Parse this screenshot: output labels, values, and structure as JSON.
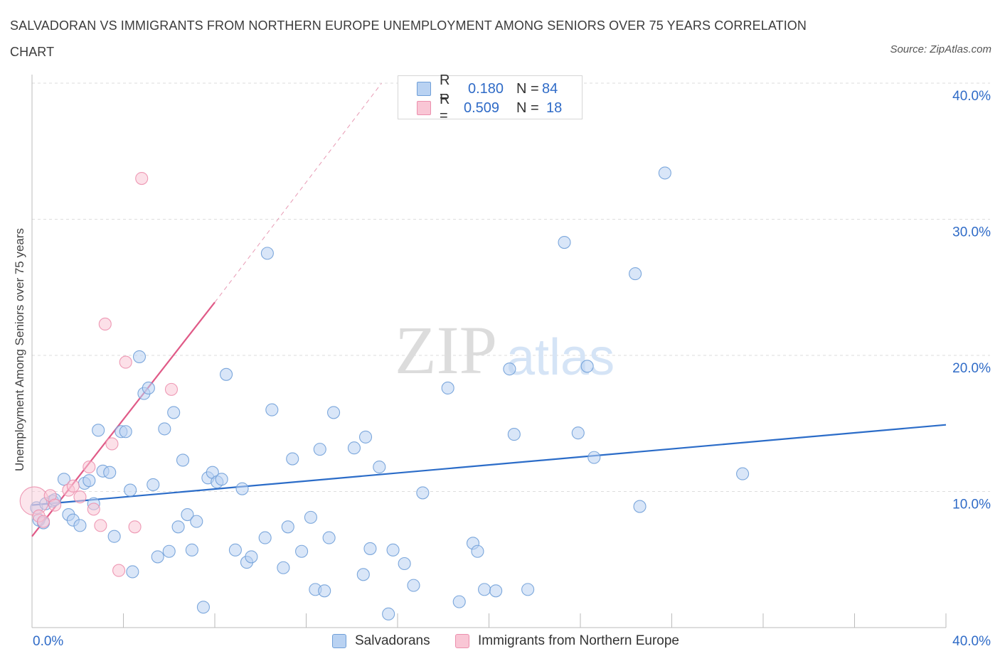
{
  "title": "SALVADORAN VS IMMIGRANTS FROM NORTHERN EUROPE UNEMPLOYMENT AMONG SENIORS OVER 75 YEARS CORRELATION CHART",
  "source": "Source: ZipAtlas.com",
  "watermark": {
    "zip": "ZIP",
    "atlas": "atlas"
  },
  "legend": {
    "r_label": "R =",
    "n_label": "N =",
    "rows": [
      {
        "r": "0.180",
        "n": "84",
        "color": "#a9c8f0"
      },
      {
        "r": "0.509",
        "n": "18",
        "color": "#f7b8cb"
      }
    ]
  },
  "bottom_legend": [
    "Salvadorans",
    "Immigrants from Northern Europe"
  ],
  "chart_data": {
    "type": "scatter",
    "ylabel": "Unemployment Among Seniors over 75 years",
    "xlim": [
      0,
      40
    ],
    "ylim": [
      0,
      40
    ],
    "x_tick_labels": [
      "0.0%",
      "40.0%"
    ],
    "y_tick_labels": [
      "10.0%",
      "20.0%",
      "30.0%",
      "40.0%"
    ],
    "y_ticks": [
      10,
      20,
      30,
      40
    ],
    "grid": true,
    "series": [
      {
        "name": "Salvadorans",
        "color": "#6f9fd8",
        "fill": "#b9d2f2",
        "trend": {
          "x0": 0,
          "y0": 9.0,
          "x1": 40,
          "y1": 14.9,
          "color": "#2b6cc8"
        },
        "points": [
          [
            0.2,
            8.8
          ],
          [
            0.3,
            7.9
          ],
          [
            0.5,
            7.7
          ],
          [
            0.6,
            9.1
          ],
          [
            0.9,
            9.3
          ],
          [
            1.0,
            9.4
          ],
          [
            1.4,
            10.9
          ],
          [
            1.6,
            8.3
          ],
          [
            1.8,
            7.9
          ],
          [
            2.1,
            7.5
          ],
          [
            2.3,
            10.6
          ],
          [
            2.5,
            10.8
          ],
          [
            2.7,
            9.1
          ],
          [
            2.9,
            14.5
          ],
          [
            3.1,
            11.5
          ],
          [
            3.4,
            11.4
          ],
          [
            3.6,
            6.7
          ],
          [
            3.9,
            14.4
          ],
          [
            4.1,
            14.4
          ],
          [
            4.3,
            10.1
          ],
          [
            4.4,
            4.1
          ],
          [
            4.7,
            19.9
          ],
          [
            4.9,
            17.2
          ],
          [
            5.1,
            17.6
          ],
          [
            5.3,
            10.5
          ],
          [
            5.5,
            5.2
          ],
          [
            5.8,
            14.6
          ],
          [
            6.0,
            5.6
          ],
          [
            6.2,
            15.8
          ],
          [
            6.4,
            7.4
          ],
          [
            6.6,
            12.3
          ],
          [
            6.8,
            8.3
          ],
          [
            7.0,
            5.7
          ],
          [
            7.2,
            7.8
          ],
          [
            7.5,
            1.5
          ],
          [
            7.7,
            11.0
          ],
          [
            7.9,
            11.4
          ],
          [
            8.1,
            10.7
          ],
          [
            8.3,
            10.9
          ],
          [
            8.5,
            18.6
          ],
          [
            8.9,
            5.7
          ],
          [
            9.2,
            10.2
          ],
          [
            9.4,
            4.8
          ],
          [
            9.6,
            5.2
          ],
          [
            10.2,
            6.6
          ],
          [
            10.3,
            27.5
          ],
          [
            10.5,
            16.0
          ],
          [
            11.0,
            4.4
          ],
          [
            11.2,
            7.4
          ],
          [
            11.4,
            12.4
          ],
          [
            11.8,
            5.6
          ],
          [
            12.2,
            8.1
          ],
          [
            12.4,
            2.8
          ],
          [
            12.6,
            13.1
          ],
          [
            12.8,
            2.7
          ],
          [
            13.0,
            6.6
          ],
          [
            13.2,
            15.8
          ],
          [
            14.1,
            13.2
          ],
          [
            14.5,
            3.9
          ],
          [
            14.6,
            14.0
          ],
          [
            14.8,
            5.8
          ],
          [
            15.2,
            11.8
          ],
          [
            15.6,
            1.0
          ],
          [
            15.8,
            5.7
          ],
          [
            16.3,
            4.7
          ],
          [
            16.7,
            3.1
          ],
          [
            17.1,
            9.9
          ],
          [
            18.2,
            17.6
          ],
          [
            18.7,
            1.9
          ],
          [
            19.3,
            6.2
          ],
          [
            19.5,
            5.6
          ],
          [
            19.8,
            2.8
          ],
          [
            20.3,
            2.7
          ],
          [
            20.9,
            19.0
          ],
          [
            21.1,
            14.2
          ],
          [
            21.7,
            2.8
          ],
          [
            23.3,
            28.3
          ],
          [
            23.9,
            14.3
          ],
          [
            24.3,
            19.2
          ],
          [
            24.6,
            12.5
          ],
          [
            26.4,
            26.0
          ],
          [
            26.6,
            8.9
          ],
          [
            27.7,
            33.4
          ],
          [
            31.1,
            11.3
          ]
        ]
      },
      {
        "name": "Immigrants from Northern Europe",
        "color": "#ec8fad",
        "fill": "#f9c6d5",
        "trend": {
          "x0": 0,
          "y0": 6.7,
          "x1": 8.0,
          "y1": 23.9,
          "color": "#e05a87",
          "dash_to": {
            "x": 15.3,
            "y": 40
          }
        },
        "points": [
          [
            0.1,
            9.3
          ],
          [
            0.3,
            8.2
          ],
          [
            0.5,
            7.8
          ],
          [
            0.8,
            9.7
          ],
          [
            1.0,
            9.0
          ],
          [
            1.6,
            10.1
          ],
          [
            1.8,
            10.4
          ],
          [
            2.1,
            9.6
          ],
          [
            2.5,
            11.8
          ],
          [
            2.7,
            8.7
          ],
          [
            3.0,
            7.5
          ],
          [
            3.2,
            22.3
          ],
          [
            3.5,
            13.5
          ],
          [
            3.8,
            4.2
          ],
          [
            4.1,
            19.5
          ],
          [
            4.5,
            7.4
          ],
          [
            4.8,
            33.0
          ],
          [
            6.1,
            17.5
          ]
        ]
      }
    ]
  }
}
